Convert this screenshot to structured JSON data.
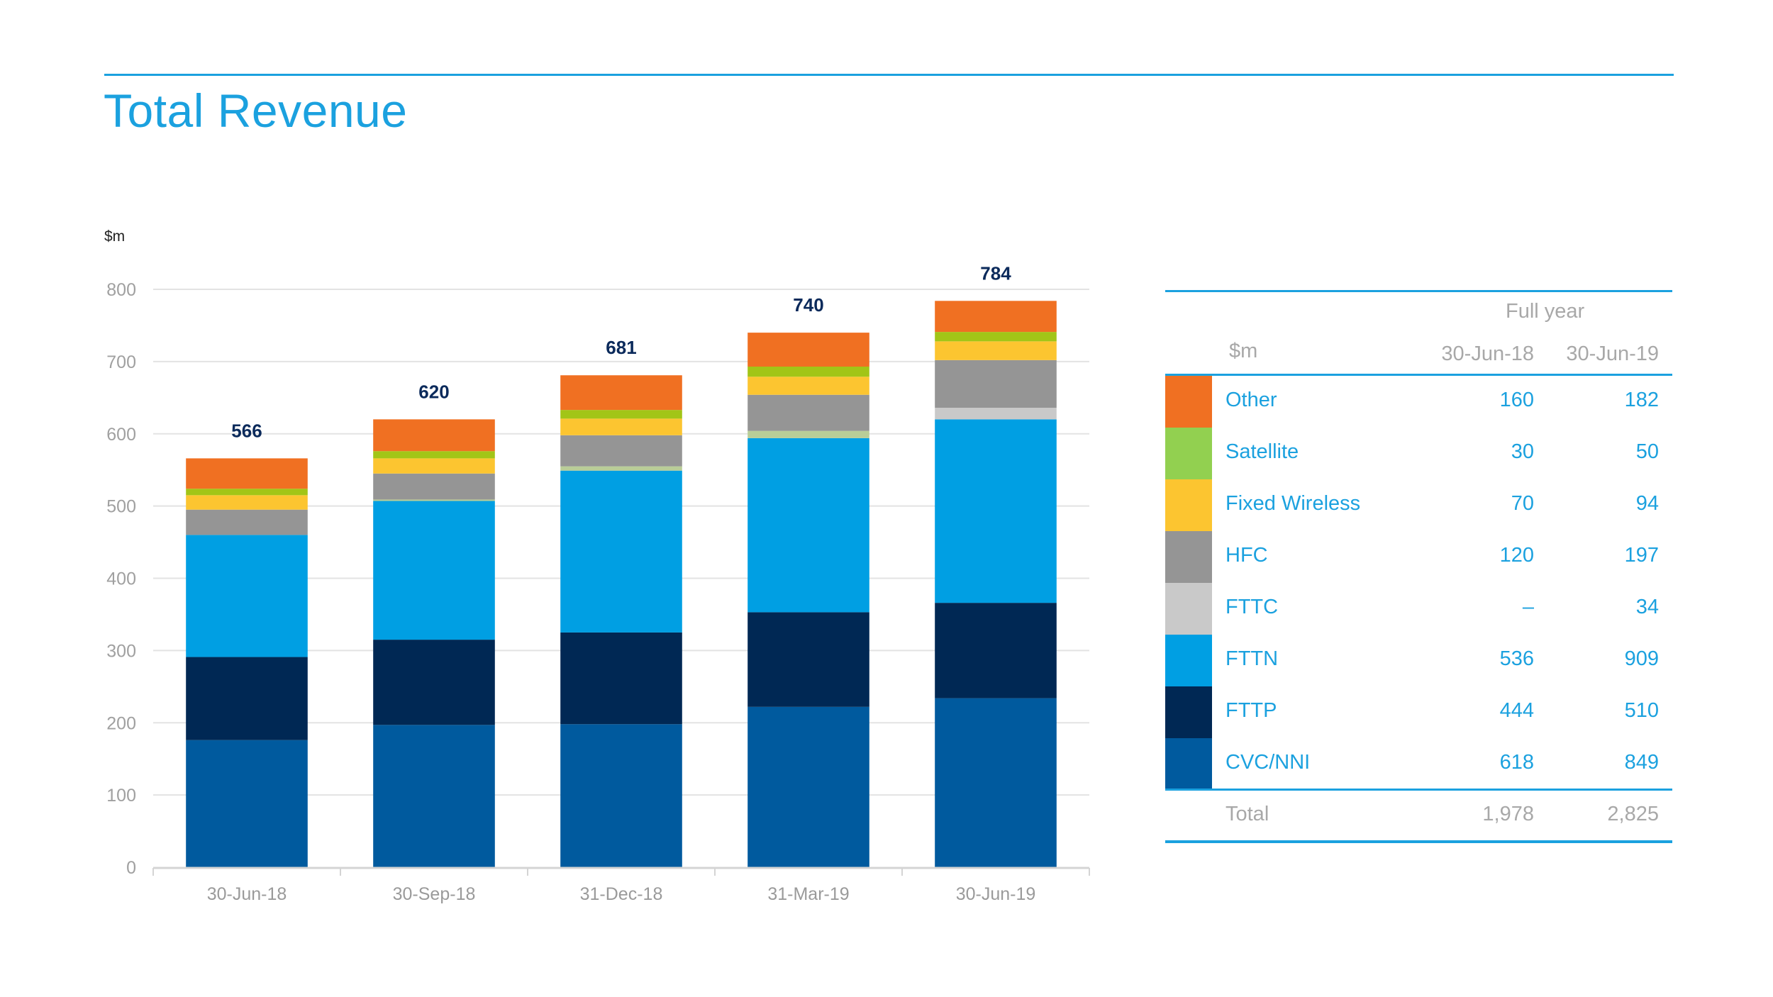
{
  "header": {
    "title": "Total Revenue"
  },
  "chart_data": {
    "type": "bar",
    "stacked": true,
    "title": "Total Revenue",
    "ylabel": "$m",
    "xlabel": "",
    "ylim": [
      0,
      800
    ],
    "yticks": [
      0,
      100,
      200,
      300,
      400,
      500,
      600,
      700,
      800
    ],
    "grid": true,
    "categories": [
      "30-Jun-18",
      "30-Sep-18",
      "31-Dec-18",
      "31-Mar-19",
      "30-Jun-19"
    ],
    "totals": [
      566,
      620,
      681,
      740,
      784
    ],
    "total_label_color": "#0b2a5b",
    "series": [
      {
        "name": "CVC/NNI",
        "color": "#005a9e",
        "values": [
          176,
          197,
          198,
          222,
          234
        ]
      },
      {
        "name": "FTTP",
        "color": "#002854",
        "values": [
          115,
          118,
          127,
          131,
          132
        ]
      },
      {
        "name": "FTTN",
        "color": "#009fe3",
        "values": [
          169,
          192,
          224,
          241,
          254
        ]
      },
      {
        "name": "FTTC",
        "color": "#b9cd98",
        "values": [
          0,
          2,
          6,
          10,
          16
        ]
      },
      {
        "name": "HFC",
        "color": "#959595",
        "values": [
          35,
          36,
          43,
          50,
          66
        ]
      },
      {
        "name": "Fixed Wireless",
        "color": "#fcc530",
        "values": [
          20,
          21,
          23,
          25,
          26
        ]
      },
      {
        "name": "Satellite",
        "color": "#a2c517",
        "values": [
          9,
          10,
          12,
          14,
          13
        ]
      },
      {
        "name": "Other",
        "color": "#f07022",
        "values": [
          42,
          44,
          48,
          47,
          43
        ]
      }
    ],
    "last_bar_fttc_color": "#c9c9c9"
  },
  "table": {
    "group_header": "Full year",
    "unit_header": "$m",
    "columns": [
      "30-Jun-18",
      "30-Jun-19"
    ],
    "rows": [
      {
        "label": "Other",
        "color": "#f07022",
        "values": [
          "160",
          "182"
        ]
      },
      {
        "label": "Satellite",
        "color": "#92d050",
        "values": [
          "30",
          "50"
        ]
      },
      {
        "label": "Fixed Wireless",
        "color": "#fcc530",
        "values": [
          "70",
          "94"
        ]
      },
      {
        "label": "HFC",
        "color": "#959595",
        "values": [
          "120",
          "197"
        ]
      },
      {
        "label": "FTTC",
        "color": "#c9c9c9",
        "values": [
          "–",
          "34"
        ]
      },
      {
        "label": "FTTN",
        "color": "#009fe3",
        "values": [
          "536",
          "909"
        ]
      },
      {
        "label": "FTTP",
        "color": "#002854",
        "values": [
          "444",
          "510"
        ]
      },
      {
        "label": "CVC/NNI",
        "color": "#005a9e",
        "values": [
          "618",
          "849"
        ]
      }
    ],
    "total": {
      "label": "Total",
      "values": [
        "1,978",
        "2,825"
      ]
    }
  },
  "colors": {
    "accent": "#1ba1df",
    "grid": "#e3e3e3",
    "axis_text": "#a0a0a0"
  }
}
